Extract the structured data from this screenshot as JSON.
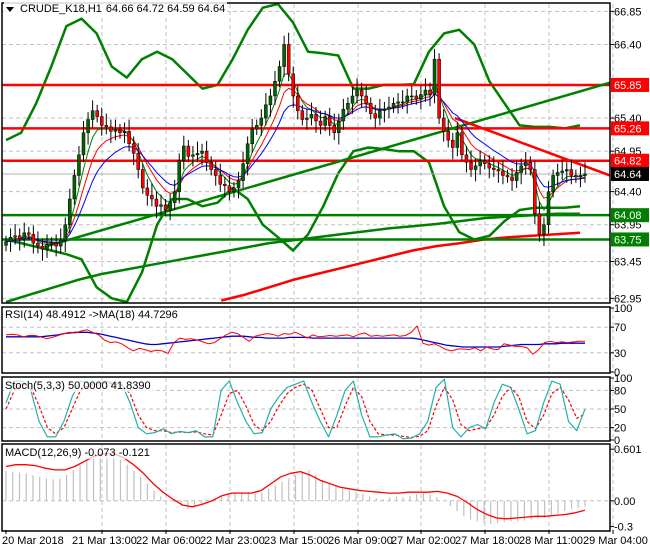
{
  "header": {
    "symbol": "CRUDE_K18,H1",
    "ohlc": "64.66 64.72 64.59 64.64"
  },
  "colors": {
    "background": "#ffffff",
    "grid": "#c0c0c0",
    "axis": "#000000",
    "bull_candle": "#006400",
    "bear_candle": "#ff0000",
    "support_line": "#008000",
    "resistance_line": "#ff0000",
    "bollinger": "#008000",
    "ma_fast": "#008000",
    "ma_mid": "#ff0000",
    "ma_slow": "#0000ff",
    "rsi": "#ff0000",
    "rsi_ma": "#0000cc",
    "stoch_main": "#20b2aa",
    "stoch_signal": "#ff0000",
    "macd_hist": "#c0c0c0",
    "macd_signal": "#ff0000",
    "current_price_bg": "#000000"
  },
  "indicators": {
    "rsi_label": "RSI(14) 48.4912  ->MA(18) 44.7296",
    "stoch_label": "Stoch(5,3,3) 50.0000 41.8390",
    "macd_label": "MACD(12,26,9) -0.073 -0.121"
  },
  "chart_data": [
    {
      "type": "candlestick",
      "title": "CRUDE_K18,H1",
      "timeframe": "H1",
      "last_ohlc": {
        "open": 64.66,
        "high": 64.72,
        "low": 64.59,
        "close": 64.64
      },
      "ylim": [
        62.9,
        66.95
      ],
      "y_ticks": [
        66.85,
        66.4,
        65.85,
        65.4,
        64.95,
        64.4,
        63.95,
        63.45,
        62.95
      ],
      "x_ticks": [
        "20 Mar 2018",
        "21 Mar 13:00",
        "22 Mar 06:00",
        "22 Mar 23:00",
        "23 Mar 15:00",
        "26 Mar 09:00",
        "27 Mar 02:00",
        "27 Mar 18:00",
        "28 Mar 11:00",
        "29 Mar 04:00"
      ],
      "horizontal_levels": [
        {
          "price": 65.85,
          "color": "#ff0000",
          "label": "65.85",
          "kind": "resistance"
        },
        {
          "price": 65.26,
          "color": "#ff0000",
          "label": "65.26",
          "kind": "resistance"
        },
        {
          "price": 64.82,
          "color": "#ff0000",
          "label": "64.82",
          "kind": "resistance"
        },
        {
          "price": 64.08,
          "color": "#008000",
          "label": "64.08",
          "kind": "support"
        },
        {
          "price": 63.75,
          "color": "#008000",
          "label": "63.75",
          "kind": "support"
        }
      ],
      "current_price": {
        "price": 64.64,
        "label": "64.64"
      },
      "trend_lines": [
        {
          "name": "rising-support",
          "color": "#008000",
          "from": [
            0.07,
            63.65
          ],
          "to": [
            1.0,
            65.88
          ]
        },
        {
          "name": "falling-resistance",
          "color": "#ff0000",
          "from": [
            0.745,
            65.4
          ],
          "to": [
            1.0,
            64.62
          ]
        }
      ],
      "close_series": [
        63.72,
        63.78,
        63.8,
        63.76,
        63.84,
        63.82,
        63.7,
        63.66,
        63.62,
        63.68,
        63.7,
        63.66,
        63.74,
        63.95,
        64.3,
        64.62,
        64.9,
        65.2,
        65.38,
        65.5,
        65.42,
        65.3,
        65.28,
        65.22,
        65.24,
        65.2,
        65.22,
        65.05,
        64.92,
        64.7,
        64.45,
        64.35,
        64.3,
        64.2,
        64.22,
        64.15,
        64.25,
        64.4,
        64.82,
        65.02,
        64.88,
        64.9,
        64.92,
        64.95,
        64.8,
        64.7,
        64.62,
        64.5,
        64.48,
        64.4,
        64.45,
        64.55,
        64.78,
        65.05,
        65.25,
        65.3,
        65.4,
        65.58,
        65.7,
        65.9,
        66.1,
        66.4,
        66.0,
        65.7,
        65.5,
        65.38,
        65.4,
        65.45,
        65.36,
        65.3,
        65.42,
        65.3,
        65.2,
        65.36,
        65.52,
        65.6,
        65.7,
        65.78,
        65.7,
        65.6,
        65.46,
        65.4,
        65.5,
        65.52,
        65.55,
        65.6,
        65.62,
        65.62,
        65.7,
        65.7,
        65.66,
        65.72,
        65.78,
        65.72,
        66.2,
        65.4,
        65.22,
        65.1,
        65.0,
        65.2,
        64.9,
        64.8,
        64.7,
        64.75,
        64.82,
        64.78,
        64.72,
        64.7,
        64.68,
        64.62,
        64.6,
        64.55,
        64.66,
        64.75,
        64.8,
        64.7,
        64.1,
        63.82,
        63.95,
        64.4,
        64.62,
        64.66,
        64.68,
        64.7,
        64.62,
        64.6,
        64.62,
        64.64
      ],
      "bollinger_series": {
        "upper": [
          65.1,
          65.2,
          65.6,
          66.1,
          66.65,
          66.75,
          66.55,
          66.1,
          65.95,
          66.2,
          66.3,
          66.2,
          66.0,
          65.8,
          65.85,
          66.2,
          66.6,
          66.9,
          66.95,
          66.7,
          66.3,
          66.28,
          66.25,
          65.8,
          65.8,
          65.85,
          65.85,
          65.86,
          66.3,
          66.55,
          66.6,
          66.4,
          65.9,
          65.6,
          65.3,
          65.28,
          65.28,
          65.26,
          65.3
        ],
        "lower": [
          63.75,
          63.7,
          63.65,
          63.6,
          63.55,
          63.48,
          63.1,
          62.95,
          62.9,
          63.3,
          63.95,
          64.3,
          64.3,
          64.2,
          64.25,
          64.45,
          64.3,
          63.95,
          63.78,
          63.6,
          63.82,
          64.2,
          64.65,
          64.95,
          65.0,
          64.98,
          64.95,
          64.95,
          64.8,
          64.2,
          63.85,
          63.75,
          63.8,
          64.0,
          64.15,
          64.18,
          64.18,
          64.18,
          64.2
        ]
      },
      "long_ma_series": {
        "green_slow": [
          62.9,
          63.0,
          63.1,
          63.2,
          63.28,
          63.34,
          63.4,
          63.46,
          63.52,
          63.58,
          63.64,
          63.7,
          63.74,
          63.78,
          63.82,
          63.86,
          63.9,
          63.93,
          63.96,
          64.0,
          64.04,
          64.06,
          64.08,
          64.1,
          64.1
        ],
        "red_slowest": [
          null,
          null,
          null,
          null,
          null,
          null,
          null,
          null,
          null,
          62.92,
          63.0,
          63.1,
          63.2,
          63.28,
          63.36,
          63.44,
          63.52,
          63.6,
          63.66,
          63.7,
          63.75,
          63.78,
          63.8,
          63.82,
          63.84
        ]
      }
    },
    {
      "type": "line",
      "title": "RSI(14) 48.4912 ->MA(18) 44.7296",
      "ylim": [
        0,
        100
      ],
      "y_ticks": [
        100,
        70,
        30,
        0
      ],
      "series": [
        {
          "name": "RSI(14)",
          "color": "#ff0000",
          "last": 48.4912,
          "values": [
            58,
            59,
            58,
            55,
            57,
            57,
            55,
            52,
            54,
            57,
            60,
            62,
            61,
            64,
            66,
            62,
            58,
            50,
            46,
            47,
            44,
            38,
            33,
            37,
            35,
            32,
            34,
            33,
            29,
            46,
            53,
            51,
            52,
            50,
            47,
            44,
            46,
            52,
            58,
            62,
            60,
            54,
            48,
            56,
            58,
            60,
            59,
            56,
            60,
            59,
            62,
            58,
            53,
            58,
            55,
            56,
            57,
            56,
            57,
            58,
            55,
            59,
            61,
            56,
            57,
            56,
            57,
            58,
            56,
            57,
            62,
            72,
            45,
            42,
            44,
            40,
            35,
            33,
            36,
            36,
            35,
            38,
            33,
            39,
            36,
            35,
            44,
            42,
            40,
            40,
            38,
            28,
            35,
            46,
            48,
            46,
            47,
            46,
            47,
            48,
            48
          ]
        },
        {
          "name": "MA(18)",
          "color": "#0000cc",
          "last": 44.7296,
          "values": [
            55,
            55,
            55,
            55,
            55,
            55,
            55,
            56,
            57,
            58,
            60,
            61,
            62,
            62,
            62,
            61,
            60,
            58,
            56,
            54,
            52,
            50,
            48,
            46,
            44,
            43,
            43,
            44,
            45,
            46,
            47,
            48,
            49,
            50,
            51,
            52,
            53,
            54,
            55,
            56,
            56,
            56,
            55,
            54,
            54,
            53,
            53,
            53,
            53,
            54,
            54,
            54,
            54,
            53,
            53,
            53,
            53,
            53,
            53,
            53,
            53,
            53,
            53,
            53,
            53,
            53,
            53,
            53,
            53,
            53,
            53,
            52,
            50,
            48,
            46,
            44,
            42,
            41,
            40,
            39,
            39,
            39,
            39,
            39,
            39,
            39,
            40,
            41,
            42,
            43,
            43,
            43,
            43,
            44,
            44,
            44,
            45,
            45,
            45,
            45,
            45
          ]
        }
      ]
    },
    {
      "type": "line",
      "title": "Stoch(5,3,3) 50.0000 41.8390",
      "ylim": [
        0,
        100
      ],
      "y_ticks": [
        100,
        80,
        50,
        20,
        0
      ],
      "series": [
        {
          "name": "%K",
          "color": "#20b2aa",
          "last": 50.0,
          "dashed": false,
          "values": [
            60,
            95,
            95,
            80,
            30,
            5,
            5,
            30,
            70,
            95,
            92,
            90,
            95,
            92,
            90,
            60,
            20,
            10,
            12,
            18,
            10,
            14,
            12,
            15,
            5,
            5,
            80,
            95,
            60,
            30,
            10,
            12,
            50,
            70,
            85,
            90,
            95,
            60,
            30,
            5,
            40,
            80,
            95,
            40,
            5,
            5,
            8,
            10,
            2,
            3,
            10,
            30,
            85,
            98,
            20,
            5,
            20,
            25,
            18,
            60,
            90,
            85,
            50,
            10,
            15,
            60,
            95,
            90,
            30,
            15,
            50
          ]
        },
        {
          "name": "%D",
          "color": "#ff0000",
          "last": 41.839,
          "dashed": true,
          "values": [
            50,
            80,
            90,
            85,
            55,
            20,
            10,
            20,
            50,
            80,
            88,
            90,
            92,
            90,
            88,
            75,
            40,
            20,
            15,
            15,
            12,
            13,
            12,
            13,
            10,
            8,
            40,
            75,
            80,
            55,
            25,
            15,
            30,
            55,
            75,
            85,
            90,
            80,
            50,
            20,
            20,
            55,
            85,
            70,
            30,
            10,
            8,
            8,
            6,
            4,
            6,
            15,
            55,
            85,
            65,
            25,
            15,
            18,
            20,
            40,
            70,
            85,
            70,
            30,
            18,
            40,
            75,
            85,
            65,
            35,
            42
          ]
        }
      ]
    },
    {
      "type": "bar+line",
      "title": "MACD(12,26,9) -0.073 -0.121",
      "ylim": [
        -0.34,
        0.65
      ],
      "y_ticks": [
        0.601,
        0.0,
        -0.3
      ],
      "series": [
        {
          "name": "MACD histogram",
          "color": "#c0c0c0",
          "last": -0.073,
          "values": [
            0.35,
            0.34,
            0.33,
            0.32,
            0.3,
            0.28,
            0.26,
            0.25,
            0.26,
            0.3,
            0.36,
            0.42,
            0.48,
            0.52,
            0.54,
            0.55,
            0.52,
            0.48,
            0.42,
            0.35,
            0.28,
            0.2,
            0.12,
            0.05,
            0.0,
            -0.02,
            -0.06,
            -0.1,
            -0.08,
            -0.04,
            0.0,
            0.03,
            0.06,
            0.08,
            0.1,
            0.1,
            0.1,
            0.08,
            0.1,
            0.14,
            0.18,
            0.22,
            0.26,
            0.3,
            0.34,
            0.36,
            0.3,
            0.24,
            0.2,
            0.16,
            0.14,
            0.12,
            0.1,
            0.08,
            0.05,
            0.03,
            0.02,
            0.04,
            0.05,
            0.04,
            0.06,
            0.08,
            0.09,
            0.07,
            0.04,
            0.0,
            -0.06,
            -0.12,
            -0.18,
            -0.22,
            -0.24,
            -0.26,
            -0.27,
            -0.26,
            -0.25,
            -0.24,
            -0.24,
            -0.23,
            -0.22,
            -0.21,
            -0.2,
            -0.18,
            -0.15,
            -0.12,
            -0.1,
            -0.08,
            -0.07
          ]
        },
        {
          "name": "Signal",
          "color": "#ff0000",
          "last": -0.121,
          "values": [
            0.4,
            0.42,
            0.42,
            0.41,
            0.38,
            0.36,
            0.36,
            0.4,
            0.46,
            0.52,
            0.55,
            0.55,
            0.5,
            0.42,
            0.32,
            0.2,
            0.1,
            0.02,
            -0.05,
            -0.07,
            -0.04,
            0.0,
            0.06,
            0.09,
            0.09,
            0.09,
            0.12,
            0.2,
            0.28,
            0.32,
            0.34,
            0.3,
            0.24,
            0.2,
            0.16,
            0.14,
            0.12,
            0.11,
            0.1,
            0.09,
            0.09,
            0.1,
            0.1,
            0.1,
            0.11,
            0.09,
            0.05,
            -0.02,
            -0.1,
            -0.16,
            -0.2,
            -0.21,
            -0.2,
            -0.19,
            -0.18,
            -0.18,
            -0.17,
            -0.16,
            -0.14,
            -0.11
          ]
        }
      ]
    }
  ],
  "axis": {
    "price_labels": [
      "66.85",
      "66.40",
      "65.40",
      "64.95",
      "64.40",
      "63.95",
      "63.45",
      "62.95"
    ],
    "rsi_labels": [
      "100",
      "70",
      "30",
      "0"
    ],
    "stoch_labels": [
      "100",
      "80",
      "50",
      "20",
      "0"
    ],
    "macd_labels": [
      "0.601",
      "0.00",
      "-0.3"
    ],
    "time_labels": [
      "20 Mar 2018",
      "21 Mar 13:00",
      "22 Mar 06:00",
      "22 Mar 23:00",
      "23 Mar 15:00",
      "26 Mar 09:00",
      "27 Mar 02:00",
      "27 Mar 18:00",
      "28 Mar 11:00",
      "29 Mar 04:00"
    ]
  }
}
